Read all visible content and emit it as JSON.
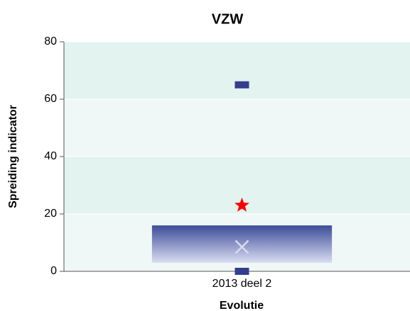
{
  "chart_data": {
    "type": "box",
    "title": "VZW",
    "xlabel": "Evolutie",
    "ylabel": "Spreiding indicator",
    "categories": [
      "2013 deel 2"
    ],
    "boxes": [
      {
        "min": 0,
        "q1": 3,
        "q3": 16,
        "mean": 8.5,
        "max": 65,
        "outlier": 23
      }
    ],
    "ylim": [
      0,
      80
    ],
    "yticks": [
      0,
      20,
      40,
      60,
      80
    ],
    "band_colors": [
      "#eff8f6",
      "#e3f3ef"
    ],
    "box_colors": [
      "#3d4c98",
      "#d9ddf1"
    ],
    "whisker_color": "#353d8f",
    "mean_color": "#d8dcf0",
    "outlier_color": "#ff0000"
  }
}
